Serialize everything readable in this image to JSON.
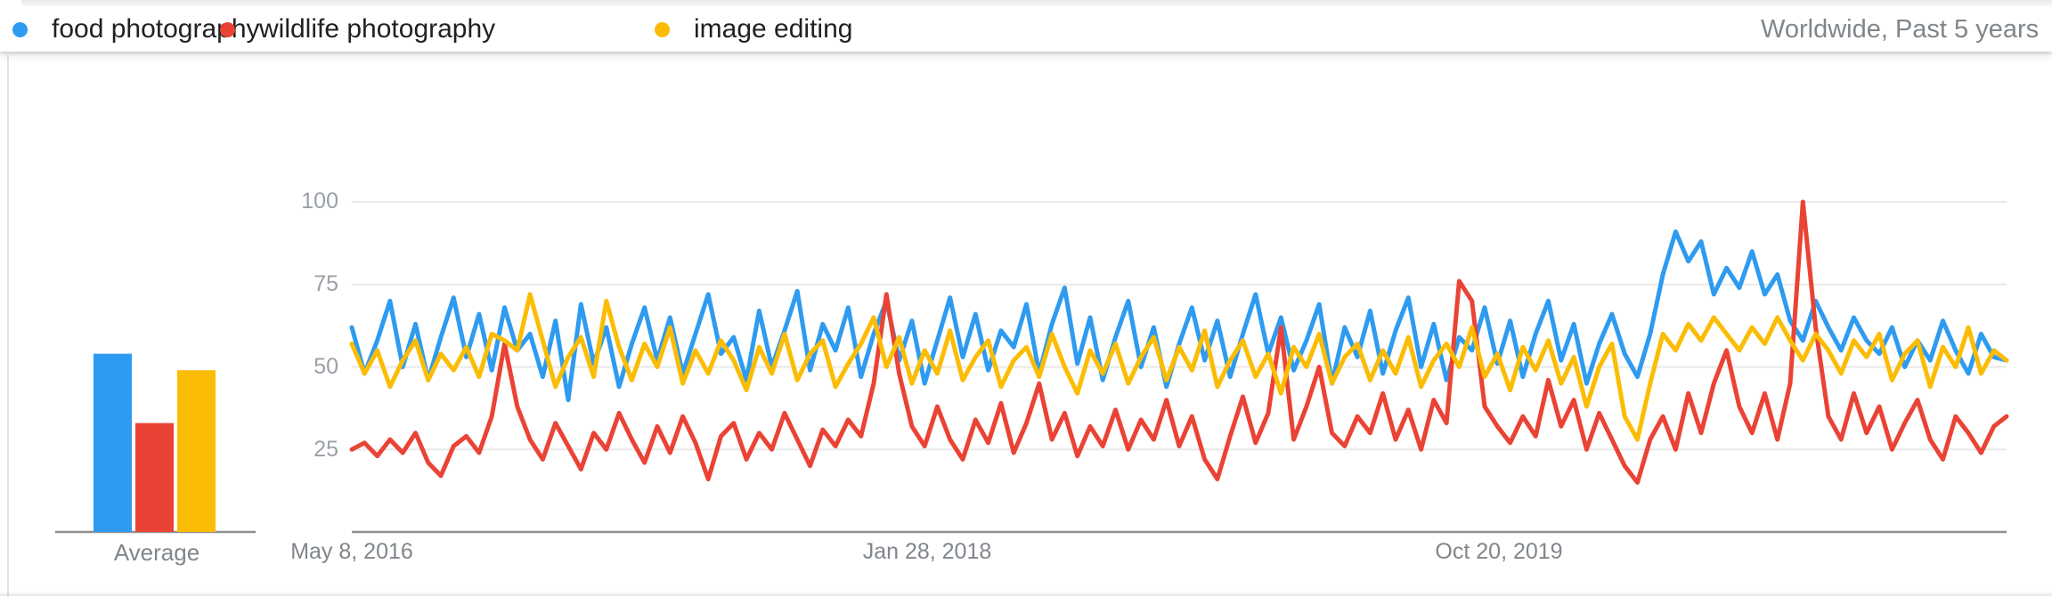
{
  "header": {
    "legend": [
      {
        "label": "food photography",
        "color": "#2e9bf0"
      },
      {
        "label": "wildlife photography",
        "color": "#ea4335"
      },
      {
        "label": "image editing",
        "color": "#fbbc04"
      }
    ],
    "scope": "Worldwide, Past 5 years"
  },
  "chart_data": {
    "type": "line",
    "ylim": [
      0,
      100
    ],
    "grid": true,
    "legend_position": "top",
    "y_ticks": [
      25,
      50,
      75,
      100
    ],
    "x_ticks": [
      "May 8, 2016",
      "Jan 28, 2018",
      "Oct 20, 2019"
    ],
    "average_label": "Average",
    "series": [
      {
        "name": "food photography",
        "color": "#2e9bf0",
        "average": 54,
        "values": [
          62,
          48,
          58,
          70,
          50,
          63,
          46,
          59,
          71,
          53,
          66,
          49,
          68,
          55,
          60,
          47,
          64,
          40,
          69,
          51,
          62,
          44,
          57,
          68,
          52,
          65,
          48,
          60,
          72,
          54,
          59,
          46,
          67,
          50,
          61,
          73,
          49,
          63,
          55,
          68,
          47,
          60,
          70,
          52,
          64,
          45,
          58,
          71,
          53,
          66,
          49,
          61,
          56,
          69,
          48,
          63,
          74,
          51,
          65,
          46,
          59,
          70,
          50,
          62,
          44,
          57,
          68,
          52,
          64,
          47,
          60,
          72,
          54,
          65,
          49,
          58,
          69,
          45,
          62,
          53,
          67,
          48,
          61,
          71,
          50,
          63,
          46,
          59,
          55,
          68,
          51,
          64,
          47,
          60,
          70,
          52,
          63,
          45,
          57,
          66,
          54,
          47,
          60,
          78,
          91,
          82,
          88,
          72,
          80,
          74,
          85,
          72,
          78,
          64,
          58,
          70,
          62,
          55,
          65,
          58,
          54,
          62,
          50,
          58,
          52,
          64,
          55,
          48,
          60,
          53,
          52
        ]
      },
      {
        "name": "wildlife photography",
        "color": "#ea4335",
        "average": 33,
        "values": [
          25,
          27,
          23,
          28,
          24,
          30,
          21,
          17,
          26,
          29,
          24,
          35,
          57,
          38,
          28,
          22,
          33,
          26,
          19,
          30,
          25,
          36,
          28,
          21,
          32,
          24,
          35,
          27,
          16,
          29,
          33,
          22,
          30,
          25,
          36,
          28,
          20,
          31,
          26,
          34,
          29,
          45,
          72,
          48,
          32,
          26,
          38,
          28,
          22,
          34,
          27,
          39,
          24,
          33,
          45,
          28,
          36,
          23,
          32,
          26,
          37,
          25,
          34,
          28,
          40,
          26,
          35,
          22,
          16,
          29,
          41,
          27,
          36,
          62,
          28,
          38,
          50,
          30,
          26,
          35,
          30,
          42,
          28,
          37,
          25,
          40,
          33,
          76,
          70,
          38,
          32,
          27,
          35,
          29,
          46,
          32,
          40,
          25,
          36,
          28,
          20,
          15,
          28,
          35,
          25,
          42,
          30,
          45,
          55,
          38,
          30,
          42,
          28,
          45,
          100,
          62,
          35,
          28,
          42,
          30,
          38,
          25,
          33,
          40,
          28,
          22,
          35,
          30,
          24,
          32,
          35
        ]
      },
      {
        "name": "image editing",
        "color": "#fbbc04",
        "average": 49,
        "values": [
          57,
          48,
          55,
          44,
          52,
          58,
          46,
          54,
          49,
          56,
          47,
          60,
          58,
          55,
          72,
          58,
          44,
          53,
          59,
          47,
          70,
          56,
          46,
          57,
          50,
          62,
          45,
          55,
          48,
          58,
          52,
          43,
          56,
          48,
          60,
          46,
          54,
          58,
          44,
          51,
          57,
          65,
          50,
          59,
          45,
          55,
          48,
          61,
          46,
          53,
          58,
          44,
          52,
          56,
          47,
          60,
          50,
          42,
          55,
          48,
          57,
          45,
          53,
          59,
          46,
          56,
          49,
          61,
          44,
          52,
          58,
          47,
          54,
          42,
          56,
          50,
          60,
          45,
          53,
          57,
          46,
          55,
          48,
          59,
          44,
          52,
          57,
          50,
          62,
          47,
          54,
          43,
          56,
          49,
          58,
          45,
          53,
          38,
          50,
          57,
          35,
          28,
          45,
          60,
          55,
          63,
          58,
          65,
          60,
          55,
          62,
          57,
          65,
          58,
          52,
          60,
          55,
          48,
          58,
          53,
          60,
          46,
          54,
          58,
          44,
          56,
          50,
          62,
          48,
          55,
          52
        ]
      }
    ]
  }
}
